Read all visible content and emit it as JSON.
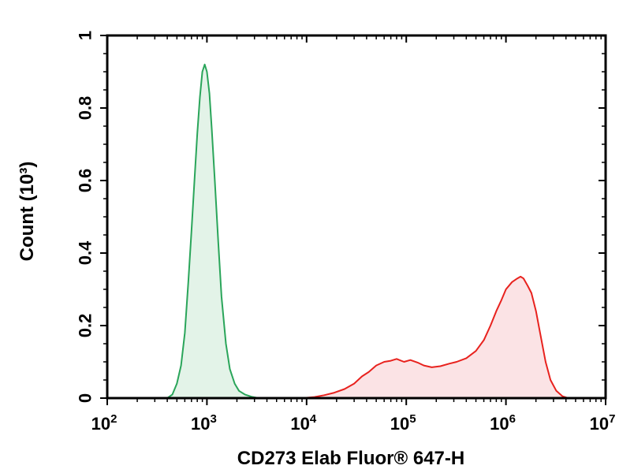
{
  "chart_data": {
    "type": "area",
    "title": "",
    "xlabel": "CD273 Elab Fluor® 647-H",
    "ylabel": "Count (10³)",
    "x_scale": "log",
    "xlim": [
      100,
      10000000
    ],
    "ylim": [
      0,
      1
    ],
    "x_ticks": [
      {
        "value": 100,
        "base": "10",
        "exp": "2"
      },
      {
        "value": 1000,
        "base": "10",
        "exp": "3"
      },
      {
        "value": 10000,
        "base": "10",
        "exp": "4"
      },
      {
        "value": 100000,
        "base": "10",
        "exp": "5"
      },
      {
        "value": 1000000,
        "base": "10",
        "exp": "6"
      },
      {
        "value": 10000000,
        "base": "10",
        "exp": "7"
      }
    ],
    "y_ticks": [
      {
        "value": 0,
        "label": "0"
      },
      {
        "value": 0.2,
        "label": "0.2"
      },
      {
        "value": 0.4,
        "label": "0.4"
      },
      {
        "value": 0.6,
        "label": "0.6"
      },
      {
        "value": 0.8,
        "label": "0.8"
      },
      {
        "value": 1,
        "label": "1"
      }
    ],
    "grid": false,
    "legend": "none",
    "series": [
      {
        "line_color": "#2aa55a",
        "fill_color": "#e3f3e8",
        "points": [
          [
            400,
            0
          ],
          [
            450,
            0.01
          ],
          [
            500,
            0.04
          ],
          [
            550,
            0.09
          ],
          [
            600,
            0.18
          ],
          [
            650,
            0.32
          ],
          [
            700,
            0.46
          ],
          [
            750,
            0.6
          ],
          [
            800,
            0.73
          ],
          [
            850,
            0.83
          ],
          [
            900,
            0.9
          ],
          [
            950,
            0.92
          ],
          [
            1000,
            0.9
          ],
          [
            1060,
            0.84
          ],
          [
            1120,
            0.74
          ],
          [
            1200,
            0.6
          ],
          [
            1300,
            0.43
          ],
          [
            1400,
            0.28
          ],
          [
            1550,
            0.15
          ],
          [
            1700,
            0.08
          ],
          [
            1900,
            0.04
          ],
          [
            2100,
            0.02
          ],
          [
            2400,
            0.01
          ],
          [
            2800,
            0.004
          ],
          [
            3300,
            0
          ]
        ]
      },
      {
        "line_color": "#e8221e",
        "fill_color": "#fbe3e5",
        "points": [
          [
            9000,
            0
          ],
          [
            12000,
            0.003
          ],
          [
            15000,
            0.008
          ],
          [
            19000,
            0.015
          ],
          [
            24000,
            0.025
          ],
          [
            30000,
            0.04
          ],
          [
            36000,
            0.06
          ],
          [
            42000,
            0.072
          ],
          [
            50000,
            0.09
          ],
          [
            60000,
            0.1
          ],
          [
            70000,
            0.103
          ],
          [
            80000,
            0.108
          ],
          [
            95000,
            0.1
          ],
          [
            110000,
            0.105
          ],
          [
            130000,
            0.098
          ],
          [
            150000,
            0.09
          ],
          [
            180000,
            0.085
          ],
          [
            220000,
            0.088
          ],
          [
            270000,
            0.095
          ],
          [
            320000,
            0.1
          ],
          [
            400000,
            0.11
          ],
          [
            500000,
            0.13
          ],
          [
            600000,
            0.16
          ],
          [
            700000,
            0.2
          ],
          [
            800000,
            0.24
          ],
          [
            900000,
            0.27
          ],
          [
            1000000,
            0.3
          ],
          [
            1150000,
            0.32
          ],
          [
            1300000,
            0.33
          ],
          [
            1400000,
            0.335
          ],
          [
            1500000,
            0.33
          ],
          [
            1650000,
            0.31
          ],
          [
            1800000,
            0.29
          ],
          [
            2000000,
            0.24
          ],
          [
            2200000,
            0.18
          ],
          [
            2500000,
            0.1
          ],
          [
            2800000,
            0.05
          ],
          [
            3200000,
            0.02
          ],
          [
            3700000,
            0.005
          ],
          [
            4200000,
            0
          ]
        ]
      }
    ]
  }
}
